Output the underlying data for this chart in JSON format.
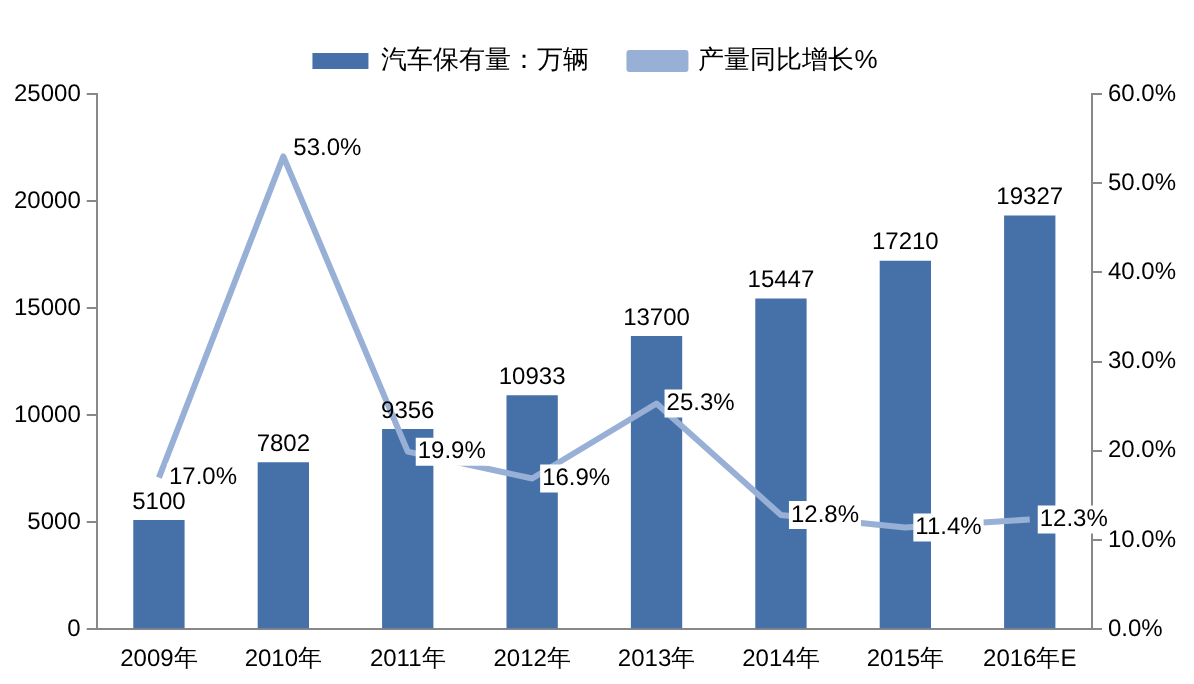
{
  "chart_data": {
    "type": "bar",
    "categories": [
      "2009年",
      "2010年",
      "2011年",
      "2012年",
      "2013年",
      "2014年",
      "2015年",
      "2016年E"
    ],
    "series": [
      {
        "name": "汽车保有量：万辆",
        "color": "#4571a8",
        "values": [
          5100,
          7802,
          9356,
          10933,
          13700,
          15447,
          17210,
          19327
        ]
      },
      {
        "name": "产量同比增长%",
        "type": "line",
        "axis": "y2",
        "color": "#98afd6",
        "values": [
          17.0,
          53.0,
          19.9,
          16.9,
          25.3,
          12.8,
          11.4,
          12.3
        ],
        "value_labels": [
          "17.0%",
          "53.0%",
          "19.9%",
          "16.9%",
          "25.3%",
          "12.8%",
          "11.4%",
          "12.3%"
        ]
      }
    ],
    "data_labels": true,
    "ylim": [
      0,
      25000
    ],
    "yticks": [
      0,
      5000,
      10000,
      15000,
      20000,
      25000
    ],
    "y2lim": [
      0,
      60
    ],
    "y2ticks": [
      {
        "value": 0,
        "label": "0.0%"
      },
      {
        "value": 10,
        "label": "10.0%"
      },
      {
        "value": 20,
        "label": "20.0%"
      },
      {
        "value": 30,
        "label": "30.0%"
      },
      {
        "value": 40,
        "label": "40.0%"
      },
      {
        "value": 50,
        "label": "50.0%"
      },
      {
        "value": 60,
        "label": "60.0%"
      }
    ],
    "grid": false,
    "legend": "top",
    "marker": "none",
    "line_style": "solid"
  }
}
